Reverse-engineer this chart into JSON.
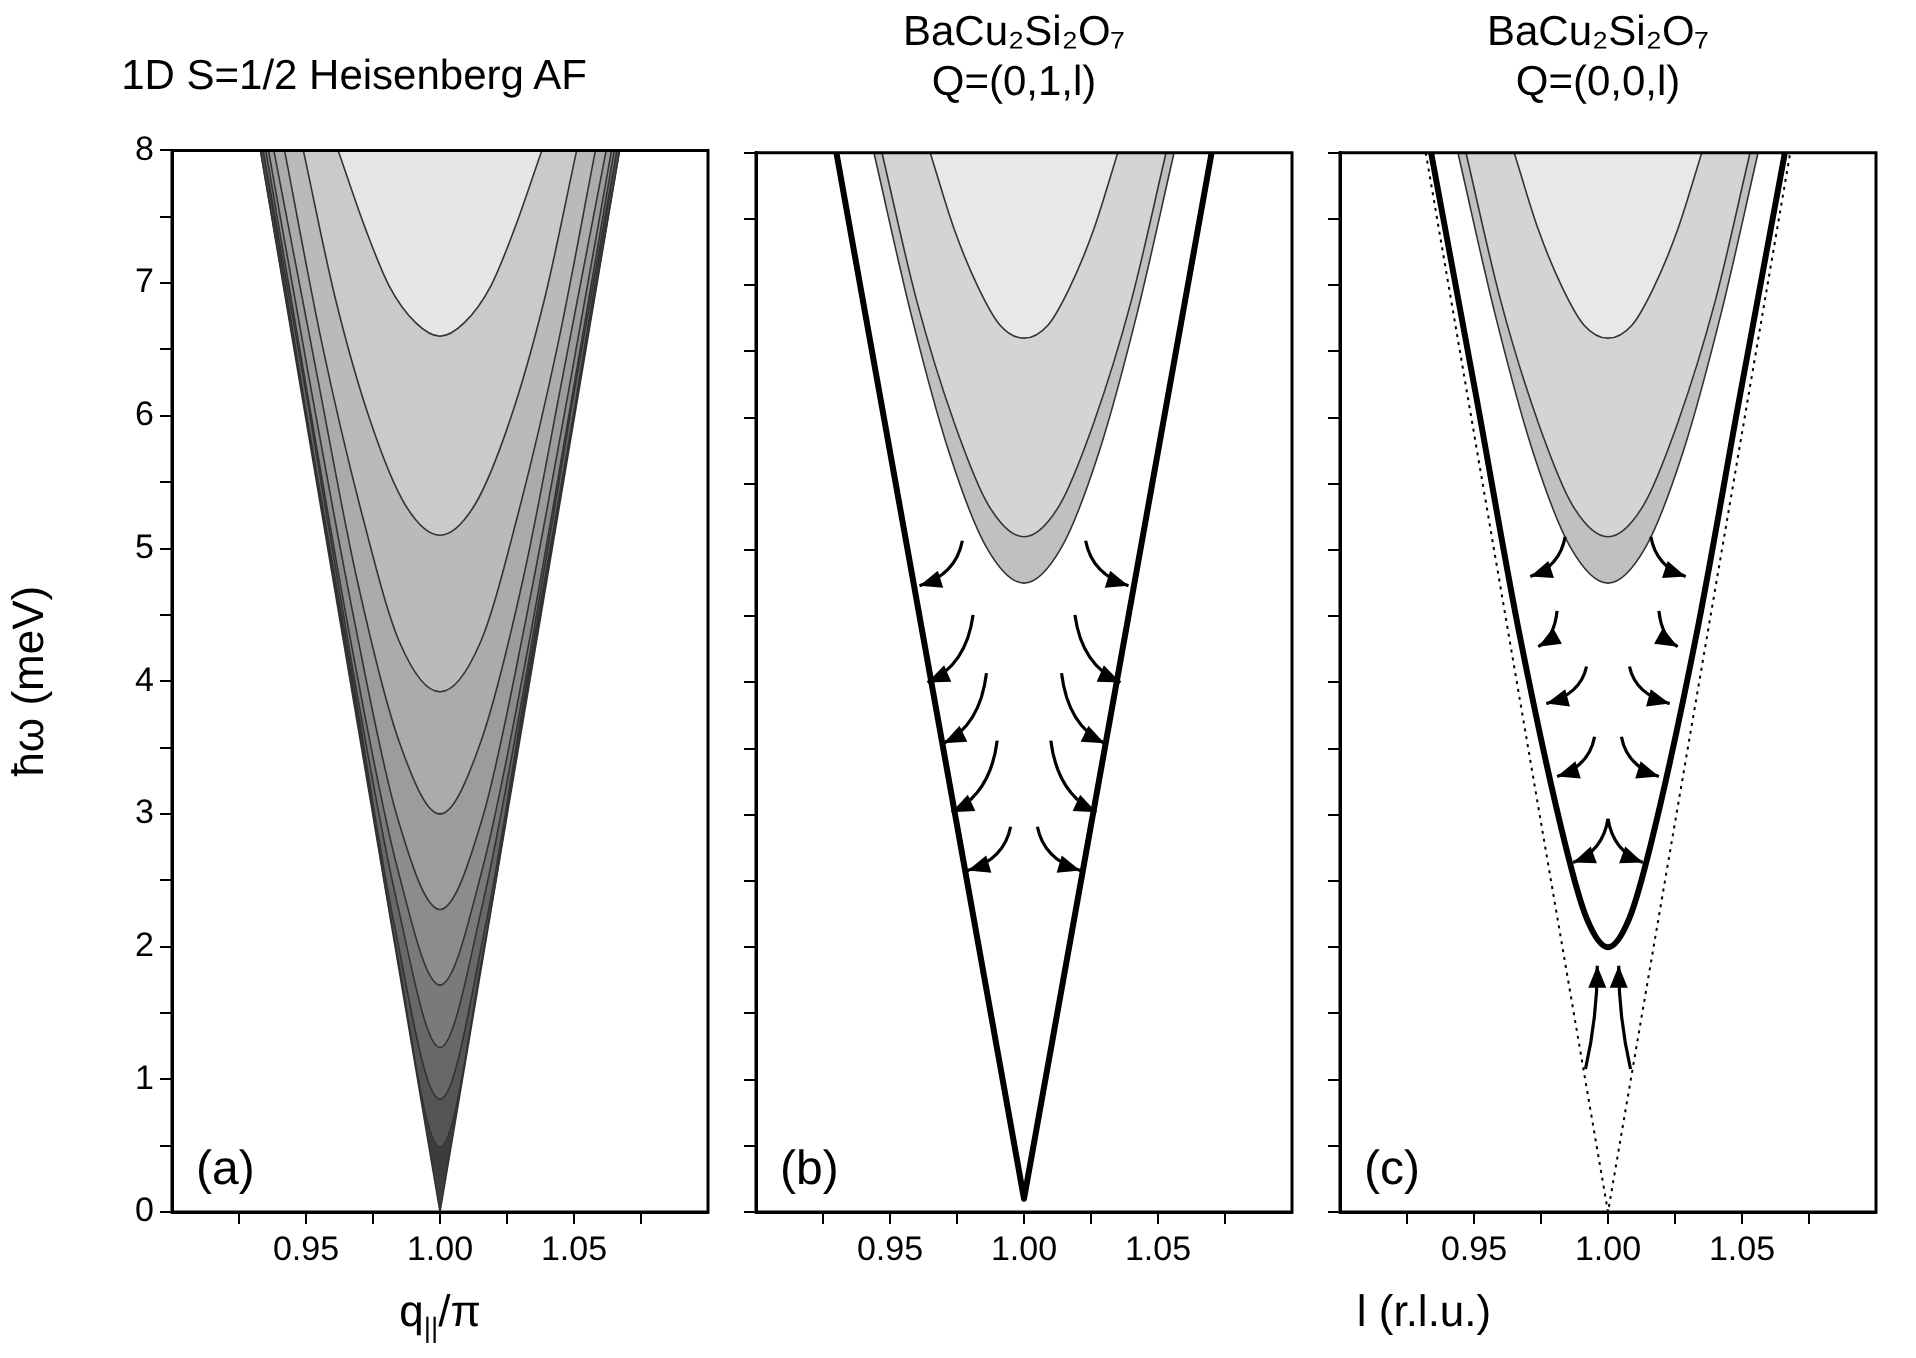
{
  "chart_data": [
    {
      "type": "area",
      "title": "1D S=1/2 Heisenberg AF",
      "xlabel": "q$_{||}$/π",
      "ylabel": "ħω (meV)",
      "xlim": [
        0.9,
        1.1
      ],
      "ylim": [
        0,
        8
      ],
      "xticks": [
        {
          "value": 0.925,
          "label": null
        },
        {
          "value": 0.95,
          "label": "0.95"
        },
        {
          "value": 0.975,
          "label": null
        },
        {
          "value": 1,
          "label": "1.00"
        },
        {
          "value": 1.025,
          "label": null
        },
        {
          "value": 1.05,
          "label": "1.05"
        },
        {
          "value": 1.075,
          "label": null
        }
      ],
      "yticks": [
        0,
        {
          "value": 0.5,
          "label": null
        },
        1,
        {
          "value": 1.5,
          "label": null
        },
        2,
        {
          "value": 2.5,
          "label": null
        },
        3,
        {
          "value": 3.5,
          "label": null
        },
        4,
        {
          "value": 4.5,
          "label": null
        },
        5,
        {
          "value": 5.5,
          "label": null
        },
        6,
        {
          "value": 6.5,
          "label": null
        },
        7,
        {
          "value": 7.5,
          "label": null
        },
        8
      ],
      "grid": false,
      "legend": false,
      "annotations": [
        "(a)"
      ],
      "series": [
        {
          "color": "#3c3c3c",
          "x": [
            0.933,
            1,
            1.067
          ],
          "values": [
            8,
            0,
            8
          ]
        },
        {
          "color": "#555555",
          "x": [
            0.933,
            0.95,
            0.967,
            0.983,
            1,
            1.017,
            1.033,
            1.05,
            1.067
          ],
          "values": [
            8,
            6.01,
            4.02,
            2.06,
            0.49,
            2.06,
            4.02,
            6.01,
            8
          ]
        },
        {
          "color": "#686868",
          "x": [
            0.934,
            0.95,
            0.967,
            0.983,
            1,
            1.017,
            1.033,
            1.05,
            1.066
          ],
          "values": [
            8,
            6.03,
            4.07,
            2.16,
            0.85,
            2.16,
            4.07,
            6.03,
            8
          ]
        },
        {
          "color": "#7a7a7a",
          "x": [
            0.934,
            0.951,
            0.967,
            0.984,
            1,
            1.016,
            1.033,
            1.049,
            1.066
          ],
          "values": [
            8,
            6.06,
            4.14,
            2.33,
            1.24,
            2.33,
            4.14,
            6.06,
            8
          ]
        },
        {
          "color": "#8c8c8c",
          "x": [
            0.935,
            0.951,
            0.967,
            0.984,
            1,
            1.016,
            1.033,
            1.049,
            1.065
          ],
          "values": [
            8,
            6.11,
            4.27,
            2.6,
            1.71,
            2.6,
            4.27,
            6.11,
            8
          ]
        },
        {
          "color": "#9c9c9c",
          "x": [
            0.936,
            0.952,
            0.968,
            0.984,
            1,
            1.016,
            1.032,
            1.048,
            1.064
          ],
          "values": [
            8,
            6.19,
            4.46,
            2.98,
            2.28,
            2.98,
            4.46,
            6.19,
            8
          ]
        },
        {
          "color": "#ababab",
          "x": [
            0.938,
            0.954,
            0.969,
            0.985,
            1,
            1.015,
            1.031,
            1.046,
            1.062
          ],
          "values": [
            8,
            6.32,
            4.77,
            3.53,
            3,
            3.53,
            4.77,
            6.32,
            8
          ]
        },
        {
          "color": "#bababa",
          "x": [
            0.942,
            0.956,
            0.971,
            0.985,
            1,
            1.015,
            1.029,
            1.044,
            1.058
          ],
          "values": [
            8,
            6.54,
            5.25,
            4.29,
            3.92,
            4.29,
            5.25,
            6.54,
            8
          ]
        },
        {
          "color": "#cacaca",
          "x": [
            0.949,
            0.961,
            0.974,
            0.987,
            1,
            1.013,
            1.026,
            1.039,
            1.051
          ],
          "values": [
            8,
            6.88,
            5.96,
            5.33,
            5.1,
            5.33,
            5.96,
            6.88,
            8
          ]
        },
        {
          "color": "#e6e6e6",
          "x": [
            0.962,
            0.972,
            0.981,
            0.991,
            1,
            1.009,
            1.019,
            1.028,
            1.038
          ],
          "values": [
            8,
            7.42,
            6.98,
            6.7,
            6.6,
            6.7,
            6.98,
            7.42,
            8
          ]
        }
      ]
    },
    {
      "type": "area",
      "title": "BaCu₂Si₂O₇",
      "subtitle": "Q=(0,1,l)",
      "xlim": [
        0.9,
        1.1
      ],
      "ylim": [
        0,
        8
      ],
      "tick_labels": "x",
      "xticks": [
        {
          "value": 0.925,
          "label": null
        },
        {
          "value": 0.95,
          "label": "0.95"
        },
        {
          "value": 0.975,
          "label": null
        },
        {
          "value": 1,
          "label": "1.00"
        },
        {
          "value": 1.025,
          "label": null
        },
        {
          "value": 1.05,
          "label": "1.05"
        },
        {
          "value": 1.075,
          "label": null
        }
      ],
      "yticks": [
        0,
        {
          "value": 0.5,
          "label": null
        },
        1,
        {
          "value": 1.5,
          "label": null
        },
        2,
        {
          "value": 2.5,
          "label": null
        },
        3,
        {
          "value": 3.5,
          "label": null
        },
        4,
        {
          "value": 4.5,
          "label": null
        },
        5,
        {
          "value": 5.5,
          "label": null
        },
        6,
        {
          "value": 6.5,
          "label": null
        },
        7,
        {
          "value": 7.5,
          "label": null
        },
        8
      ],
      "grid": false,
      "legend": false,
      "annotations": [
        "(b)"
      ],
      "series": [
        {
          "color": "#c0c0c0",
          "x": [
            0.944,
            0.958,
            0.972,
            0.986,
            1,
            1.014,
            1.028,
            1.042,
            1.056
          ],
          "values": [
            8,
            6.77,
            5.74,
            5.02,
            4.75,
            5.02,
            5.74,
            6.77,
            8
          ]
        },
        {
          "color": "#d4d4d4",
          "x": [
            0.947,
            0.96,
            0.974,
            0.987,
            1,
            1.013,
            1.026,
            1.04,
            1.053
          ],
          "values": [
            8,
            6.88,
            5.96,
            5.33,
            5.1,
            5.33,
            5.96,
            6.88,
            8
          ]
        },
        {
          "color": "#e8e8e8",
          "x": [
            0.965,
            0.974,
            0.983,
            0.991,
            1,
            1.009,
            1.017,
            1.026,
            1.035
          ],
          "values": [
            8,
            7.42,
            6.98,
            6.7,
            6.6,
            6.7,
            6.98,
            7.42,
            8
          ]
        },
        {
          "type": "line",
          "line_style": "solid",
          "color": "#000000",
          "x": [
            0.93,
            1,
            1.07
          ],
          "values": [
            8,
            0.1,
            8
          ]
        }
      ]
    },
    {
      "type": "area",
      "title": "BaCu₂Si₂O₇",
      "subtitle": "Q=(0,0,l)",
      "xlabel": "l (r.l.u.)",
      "xlim": [
        0.9,
        1.1
      ],
      "ylim": [
        0,
        8
      ],
      "tick_labels": "x",
      "xticks": [
        {
          "value": 0.925,
          "label": null
        },
        {
          "value": 0.95,
          "label": "0.95"
        },
        {
          "value": 0.975,
          "label": null
        },
        {
          "value": 1,
          "label": "1.00"
        },
        {
          "value": 1.025,
          "label": null
        },
        {
          "value": 1.05,
          "label": "1.05"
        },
        {
          "value": 1.075,
          "label": null
        }
      ],
      "yticks": [
        0,
        {
          "value": 0.5,
          "label": null
        },
        1,
        {
          "value": 1.5,
          "label": null
        },
        2,
        {
          "value": 2.5,
          "label": null
        },
        3,
        {
          "value": 3.5,
          "label": null
        },
        4,
        {
          "value": 4.5,
          "label": null
        },
        5,
        {
          "value": 5.5,
          "label": null
        },
        6,
        {
          "value": 6.5,
          "label": null
        },
        7,
        {
          "value": 7.5,
          "label": null
        },
        8
      ],
      "grid": false,
      "legend": false,
      "annotations": [
        "(c)"
      ],
      "series": [
        {
          "type": "line",
          "line_style": "dotted",
          "color": "#000000",
          "x": [
            0.932,
            1,
            1.068
          ],
          "values": [
            8,
            0,
            8
          ]
        },
        {
          "color": "#c0c0c0",
          "x": [
            0.944,
            0.958,
            0.972,
            0.986,
            1,
            1.014,
            1.028,
            1.042,
            1.056
          ],
          "values": [
            8,
            6.77,
            5.74,
            5.02,
            4.75,
            5.02,
            5.74,
            6.77,
            8
          ]
        },
        {
          "color": "#d4d4d4",
          "x": [
            0.947,
            0.96,
            0.974,
            0.987,
            1,
            1.013,
            1.026,
            1.04,
            1.053
          ],
          "values": [
            8,
            6.88,
            5.96,
            5.33,
            5.1,
            5.33,
            5.96,
            6.88,
            8
          ]
        },
        {
          "color": "#e8e8e8",
          "x": [
            0.965,
            0.974,
            0.983,
            0.991,
            1,
            1.009,
            1.017,
            1.026,
            1.035
          ],
          "values": [
            8,
            7.42,
            6.98,
            6.7,
            6.6,
            6.7,
            6.98,
            7.42,
            8
          ]
        },
        {
          "type": "line",
          "line_style": "solid",
          "color": "#000000",
          "x": [
            0.934,
            0.951,
            0.967,
            0.984,
            0.992,
            1,
            1.008,
            1.016,
            1.033,
            1.049,
            1.066
          ],
          "values": [
            8,
            6.14,
            4.36,
            2.78,
            2.22,
            2,
            2.22,
            2.78,
            4.36,
            6.14,
            8
          ]
        }
      ]
    }
  ]
}
